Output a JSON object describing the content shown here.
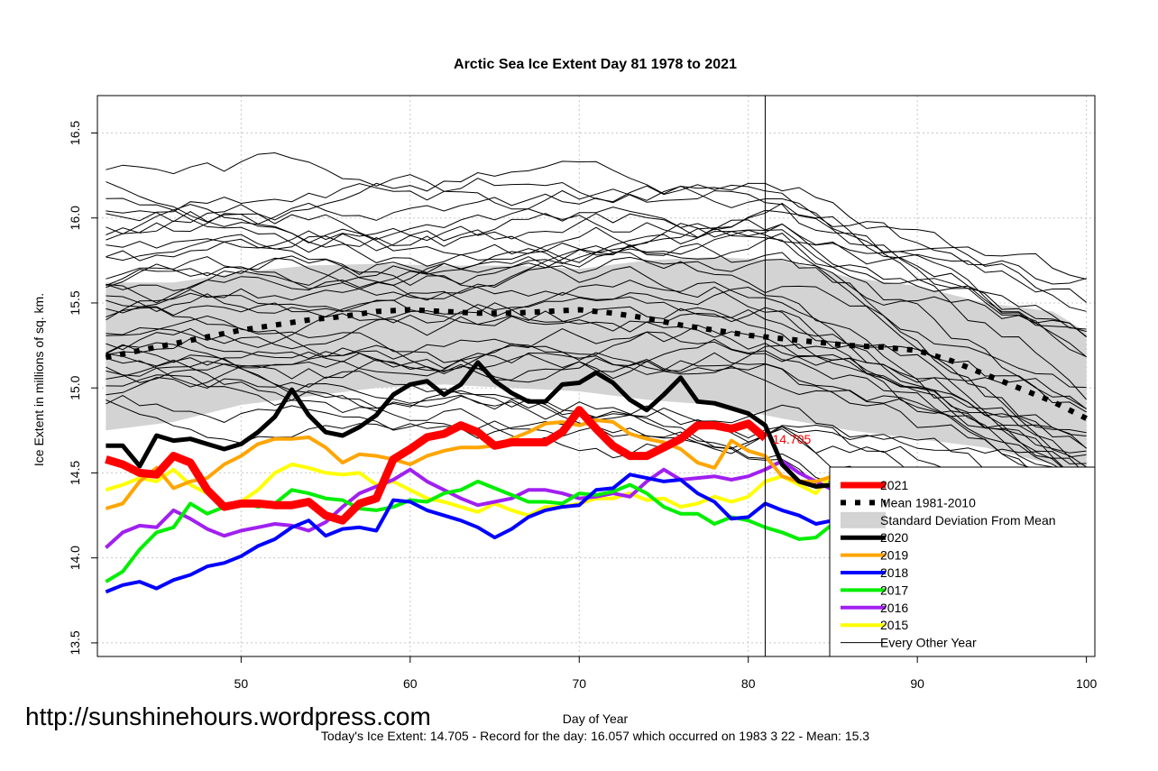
{
  "chart_data": {
    "type": "line",
    "title": "Arctic Sea Ice Extent Day 81 1978 to 2021",
    "xlabel": "Day of Year",
    "ylabel": "Ice Extent in millions of sq. km.",
    "xlim": [
      41.5,
      100.5
    ],
    "ylim": [
      13.42,
      16.72
    ],
    "x_ticks": [
      50,
      60,
      70,
      80,
      90,
      100
    ],
    "y_ticks": [
      13.5,
      14.0,
      14.5,
      15.0,
      15.5,
      16.0,
      16.5
    ],
    "grid": true,
    "vertical_marker_day": 81,
    "current_value_label": "14.705",
    "legend_position": "bottom-right",
    "legend": [
      {
        "label": "2021",
        "color": "#ff0000"
      },
      {
        "label": "Mean 1981-2010",
        "color": "#000000"
      },
      {
        "label": "Standard Deviation From Mean",
        "color": "#d3d3d3"
      },
      {
        "label": "2020",
        "color": "#000000"
      },
      {
        "label": "2019",
        "color": "#ffa500"
      },
      {
        "label": "2018",
        "color": "#0000ff"
      },
      {
        "label": "2017",
        "color": "#00ee00"
      },
      {
        "label": "2016",
        "color": "#a020f0"
      },
      {
        "label": "2015",
        "color": "#ffff00"
      },
      {
        "label": "Every Other Year",
        "color": "#000000"
      }
    ],
    "band": {
      "x": [
        42,
        46,
        50,
        54,
        58,
        62,
        66,
        70,
        74,
        78,
        82,
        86,
        90,
        94,
        98,
        100
      ],
      "upper": [
        15.62,
        15.62,
        15.68,
        15.72,
        15.73,
        15.72,
        15.72,
        15.7,
        15.75,
        15.77,
        15.75,
        15.65,
        15.6,
        15.5,
        15.45,
        15.33
      ],
      "lower": [
        14.75,
        14.8,
        14.9,
        14.95,
        15.0,
        15.02,
        15.0,
        14.98,
        14.93,
        14.9,
        14.82,
        14.75,
        14.7,
        14.65,
        14.55,
        14.44
      ]
    },
    "series": [
      {
        "name": "2021",
        "color": "#ff0000",
        "width": 9,
        "x": [
          42,
          43,
          44,
          45,
          46,
          47,
          48,
          49,
          50,
          51,
          52,
          53,
          54,
          55,
          56,
          57,
          58,
          59,
          60,
          61,
          62,
          63,
          64,
          65,
          66,
          67,
          68,
          69,
          70,
          71,
          72,
          73,
          74,
          75,
          76,
          77,
          78,
          79,
          80,
          81
        ],
        "y": [
          14.58,
          14.55,
          14.5,
          14.49,
          14.6,
          14.56,
          14.4,
          14.3,
          14.32,
          14.32,
          14.31,
          14.31,
          14.33,
          14.25,
          14.22,
          14.32,
          14.35,
          14.58,
          14.64,
          14.71,
          14.73,
          14.78,
          14.74,
          14.66,
          14.68,
          14.68,
          14.68,
          14.74,
          14.87,
          14.76,
          14.66,
          14.6,
          14.6,
          14.65,
          14.7,
          14.78,
          14.78,
          14.76,
          14.79,
          14.705
        ]
      },
      {
        "name": "Mean 1981-2010",
        "color": "#000000",
        "width": 6,
        "dash": "6,10",
        "x": [
          42,
          44,
          46,
          48,
          50,
          52,
          54,
          56,
          58,
          60,
          62,
          64,
          66,
          68,
          70,
          72,
          74,
          76,
          78,
          80,
          82,
          84,
          86,
          88,
          90,
          92,
          94,
          96,
          98,
          100
        ],
        "y": [
          15.18,
          15.22,
          15.26,
          15.3,
          15.34,
          15.37,
          15.4,
          15.42,
          15.45,
          15.46,
          15.45,
          15.44,
          15.44,
          15.45,
          15.46,
          15.44,
          15.41,
          15.37,
          15.34,
          15.31,
          15.29,
          15.27,
          15.25,
          15.24,
          15.22,
          15.16,
          15.08,
          15.0,
          14.92,
          14.82
        ]
      },
      {
        "name": "2020",
        "color": "#000000",
        "width": 5,
        "x": [
          42,
          43,
          44,
          45,
          46,
          47,
          48,
          49,
          50,
          51,
          52,
          53,
          54,
          55,
          56,
          57,
          58,
          59,
          60,
          61,
          62,
          63,
          64,
          65,
          66,
          67,
          68,
          69,
          70,
          71,
          72,
          73,
          74,
          75,
          76,
          77,
          78,
          79,
          80,
          81,
          82,
          83,
          84,
          85,
          86,
          87,
          88,
          89,
          90,
          91,
          92,
          93,
          94,
          95,
          96,
          97,
          98,
          99,
          100
        ],
        "y": [
          14.66,
          14.66,
          14.54,
          14.72,
          14.69,
          14.7,
          14.67,
          14.64,
          14.67,
          14.74,
          14.83,
          14.99,
          14.84,
          14.74,
          14.72,
          14.77,
          14.84,
          14.96,
          15.02,
          15.04,
          14.96,
          15.02,
          15.15,
          15.04,
          14.97,
          14.92,
          14.92,
          15.02,
          15.03,
          15.09,
          15.03,
          14.93,
          14.87,
          14.96,
          15.06,
          14.92,
          14.91,
          14.88,
          14.85,
          14.78,
          14.55,
          14.45,
          14.42,
          14.43,
          14.32,
          14.4,
          14.35,
          14.25,
          14.24,
          14.22,
          14.24,
          14.2,
          14.18,
          14.12,
          14.08,
          13.98,
          14.0,
          13.82,
          13.82
        ]
      },
      {
        "name": "2019",
        "color": "#ffa500",
        "width": 4,
        "x": [
          42,
          43,
          44,
          45,
          46,
          47,
          48,
          49,
          50,
          51,
          52,
          53,
          54,
          55,
          56,
          57,
          58,
          59,
          60,
          61,
          62,
          63,
          64,
          65,
          66,
          67,
          68,
          69,
          70,
          71,
          72,
          73,
          74,
          75,
          76,
          77,
          78,
          79,
          80,
          81,
          82,
          83,
          84,
          85,
          86,
          87,
          88,
          89,
          90,
          91,
          92,
          93,
          94,
          95,
          96,
          97,
          98,
          99,
          100
        ],
        "y": [
          14.29,
          14.32,
          14.45,
          14.53,
          14.41,
          14.45,
          14.47,
          14.55,
          14.6,
          14.67,
          14.7,
          14.7,
          14.71,
          14.65,
          14.56,
          14.61,
          14.6,
          14.58,
          14.55,
          14.6,
          14.63,
          14.65,
          14.65,
          14.66,
          14.7,
          14.74,
          14.79,
          14.8,
          14.78,
          14.81,
          14.8,
          14.73,
          14.7,
          14.68,
          14.64,
          14.56,
          14.53,
          14.69,
          14.63,
          14.6,
          14.48,
          14.45,
          14.45,
          14.48,
          14.4,
          14.45,
          14.35,
          14.15,
          14.08,
          14.05,
          14.0,
          14.0,
          13.95,
          13.88,
          13.78,
          13.67,
          13.55,
          13.56,
          13.55
        ]
      },
      {
        "name": "2018",
        "color": "#0000ff",
        "width": 4,
        "x": [
          42,
          43,
          44,
          45,
          46,
          47,
          48,
          49,
          50,
          51,
          52,
          53,
          54,
          55,
          56,
          57,
          58,
          59,
          60,
          61,
          62,
          63,
          64,
          65,
          66,
          67,
          68,
          69,
          70,
          71,
          72,
          73,
          74,
          75,
          76,
          77,
          78,
          79,
          80,
          81,
          82,
          83,
          84,
          85,
          86,
          87,
          88,
          89,
          90,
          91,
          92,
          93,
          94,
          95,
          96,
          97,
          98,
          99,
          100
        ],
        "y": [
          13.8,
          13.84,
          13.86,
          13.82,
          13.87,
          13.9,
          13.95,
          13.97,
          14.01,
          14.07,
          14.11,
          14.18,
          14.22,
          14.13,
          14.17,
          14.18,
          14.16,
          14.34,
          14.33,
          14.28,
          14.25,
          14.22,
          14.18,
          14.12,
          14.17,
          14.24,
          14.28,
          14.3,
          14.31,
          14.4,
          14.41,
          14.49,
          14.47,
          14.45,
          14.46,
          14.38,
          14.33,
          14.23,
          14.24,
          14.32,
          14.28,
          14.25,
          14.2,
          14.22,
          14.2,
          14.18,
          14.22,
          14.17,
          14.15,
          14.12,
          14.1,
          14.08,
          14.02,
          14.03,
          13.98,
          13.95,
          13.88,
          13.94,
          13.86
        ]
      },
      {
        "name": "2017",
        "color": "#00ee00",
        "width": 4,
        "x": [
          42,
          43,
          44,
          45,
          46,
          47,
          48,
          49,
          50,
          51,
          52,
          53,
          54,
          55,
          56,
          57,
          58,
          59,
          60,
          61,
          62,
          63,
          64,
          65,
          66,
          67,
          68,
          69,
          70,
          71,
          72,
          73,
          74,
          75,
          76,
          77,
          78,
          79,
          80,
          81,
          82,
          83,
          84,
          85,
          86,
          87,
          88,
          89,
          90,
          91,
          92,
          93,
          94,
          95,
          96,
          97,
          98,
          99,
          100
        ],
        "y": [
          13.86,
          13.92,
          14.05,
          14.15,
          14.18,
          14.32,
          14.26,
          14.3,
          14.33,
          14.3,
          14.32,
          14.4,
          14.38,
          14.35,
          14.34,
          14.29,
          14.28,
          14.3,
          14.34,
          14.33,
          14.38,
          14.4,
          14.45,
          14.41,
          14.37,
          14.33,
          14.33,
          14.32,
          14.38,
          14.37,
          14.39,
          14.43,
          14.38,
          14.3,
          14.26,
          14.26,
          14.2,
          14.24,
          14.22,
          14.18,
          14.15,
          14.11,
          14.12,
          14.2,
          14.23,
          14.25,
          14.2,
          14.18,
          14.17,
          14.15,
          14.12,
          14.13,
          14.15,
          14.1,
          14.08,
          14.02,
          14.05,
          13.96,
          13.94
        ]
      },
      {
        "name": "2016",
        "color": "#a020f0",
        "width": 4,
        "x": [
          42,
          43,
          44,
          45,
          46,
          47,
          48,
          49,
          50,
          51,
          52,
          53,
          54,
          55,
          56,
          57,
          58,
          59,
          60,
          61,
          62,
          63,
          64,
          65,
          66,
          67,
          68,
          69,
          70,
          71,
          72,
          73,
          74,
          75,
          76,
          77,
          78,
          79,
          80,
          81,
          82,
          83,
          84,
          85,
          86,
          87,
          88,
          89,
          90,
          91,
          92,
          93,
          94,
          95,
          96,
          97,
          98,
          99,
          100
        ],
        "y": [
          14.06,
          14.15,
          14.19,
          14.18,
          14.28,
          14.23,
          14.17,
          14.13,
          14.16,
          14.18,
          14.2,
          14.19,
          14.16,
          14.21,
          14.3,
          14.38,
          14.42,
          14.46,
          14.52,
          14.45,
          14.4,
          14.35,
          14.31,
          14.33,
          14.35,
          14.4,
          14.4,
          14.38,
          14.35,
          14.36,
          14.38,
          14.36,
          14.45,
          14.52,
          14.46,
          14.47,
          14.48,
          14.46,
          14.48,
          14.52,
          14.57,
          14.5,
          14.45,
          14.4,
          14.3,
          14.25,
          14.2,
          14.22,
          14.18,
          14.15,
          14.12,
          14.1,
          14.08,
          14.06,
          14.04,
          14.0,
          14.02,
          13.92,
          13.85
        ]
      },
      {
        "name": "2015",
        "color": "#ffff00",
        "width": 4,
        "x": [
          42,
          43,
          44,
          45,
          46,
          47,
          48,
          49,
          50,
          51,
          52,
          53,
          54,
          55,
          56,
          57,
          58,
          59,
          60,
          61,
          62,
          63,
          64,
          65,
          66,
          67,
          68,
          69,
          70,
          71,
          72,
          73,
          74,
          75,
          76,
          77,
          78,
          79,
          80,
          81,
          82,
          83,
          84,
          85,
          86,
          87,
          88,
          89,
          90,
          91,
          92,
          93,
          94,
          95,
          96,
          97,
          98,
          99,
          100
        ],
        "y": [
          14.4,
          14.43,
          14.47,
          14.45,
          14.52,
          14.43,
          14.38,
          14.3,
          14.33,
          14.4,
          14.5,
          14.55,
          14.53,
          14.5,
          14.49,
          14.5,
          14.43,
          14.45,
          14.4,
          14.35,
          14.33,
          14.3,
          14.27,
          14.32,
          14.28,
          14.25,
          14.3,
          14.3,
          14.32,
          14.35,
          14.35,
          14.38,
          14.34,
          14.35,
          14.3,
          14.32,
          14.36,
          14.33,
          14.36,
          14.45,
          14.48,
          14.43,
          14.38,
          14.5,
          14.45,
          14.4,
          14.38,
          14.3,
          14.24,
          14.2,
          14.15,
          14.12,
          14.15,
          14.1,
          14.05,
          14.03,
          13.98,
          14.02,
          14.05
        ]
      }
    ]
  },
  "watermark": "http://sunshinehours.wordpress.com",
  "footer": "Today's Ice Extent: 14.705  - Record for the day: 16.057 which occurred on 1983 3 22  - Mean: 15.3"
}
